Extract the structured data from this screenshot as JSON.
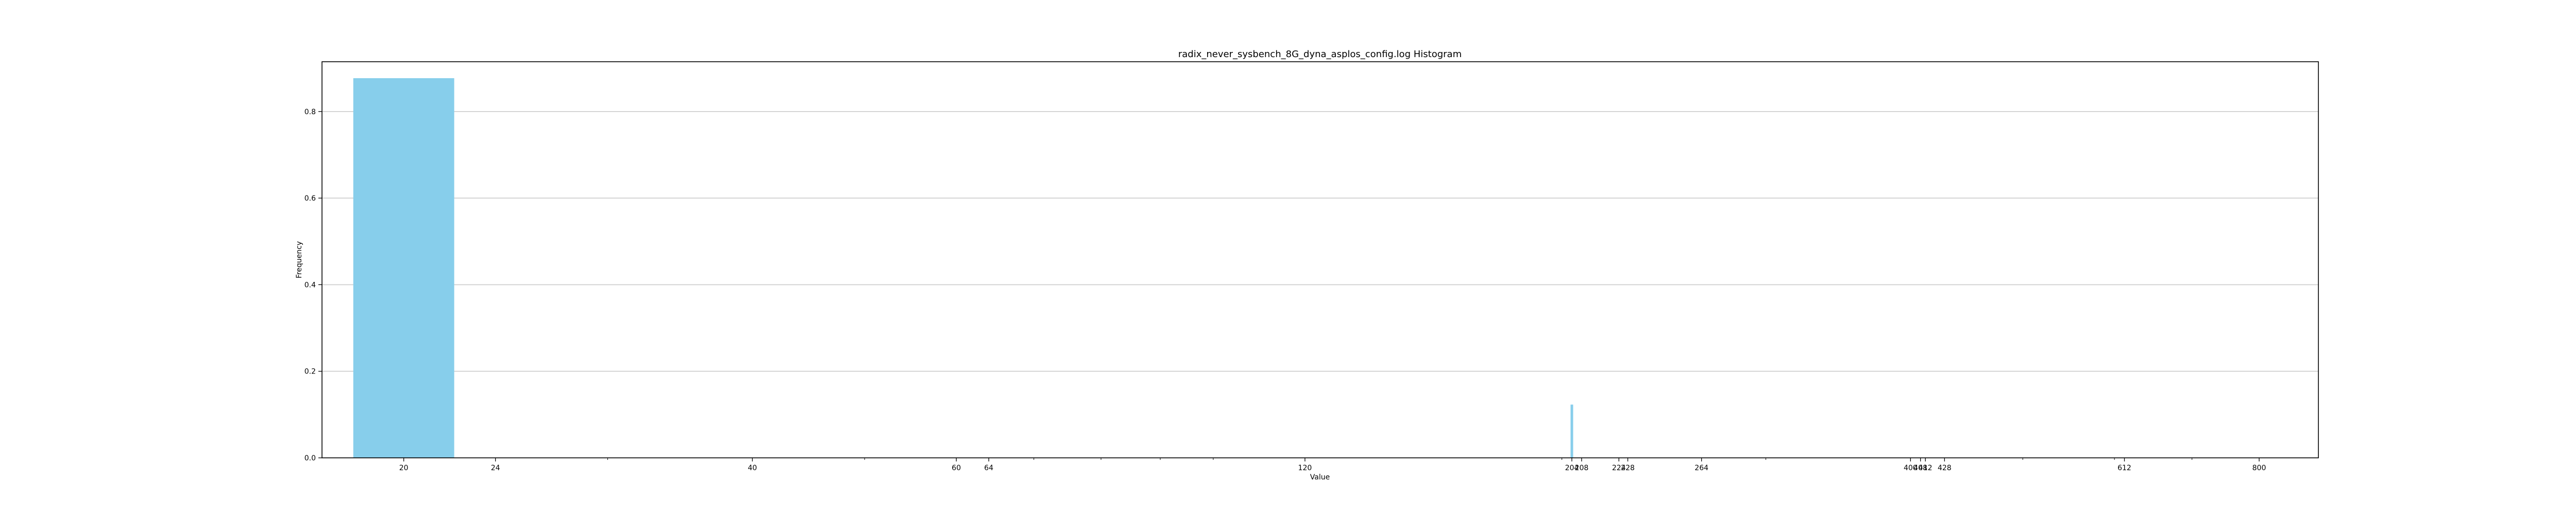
{
  "chart_data": {
    "type": "bar",
    "title": "radix_never_sysbench_8G_dyna_asplos_config.log Histogram",
    "xlabel": "Value",
    "ylabel": "Frequency",
    "x_scale": "log",
    "xlim": [
      17,
      900
    ],
    "ylim": [
      0,
      0.915
    ],
    "grid": "y",
    "bar_color": "#87CEEB",
    "x_tick_labels": [
      "20",
      "24",
      "40",
      "60",
      "64",
      "120",
      "204",
      "208",
      "224",
      "228",
      "264",
      "400",
      "408",
      "412",
      "428",
      "612",
      "800"
    ],
    "y_tick_labels": [
      "0.0",
      "0.2",
      "0.4",
      "0.6",
      "0.8"
    ],
    "bars": [
      {
        "x": 20,
        "value": 0.877
      },
      {
        "x": 204,
        "value": 0.123
      }
    ]
  }
}
